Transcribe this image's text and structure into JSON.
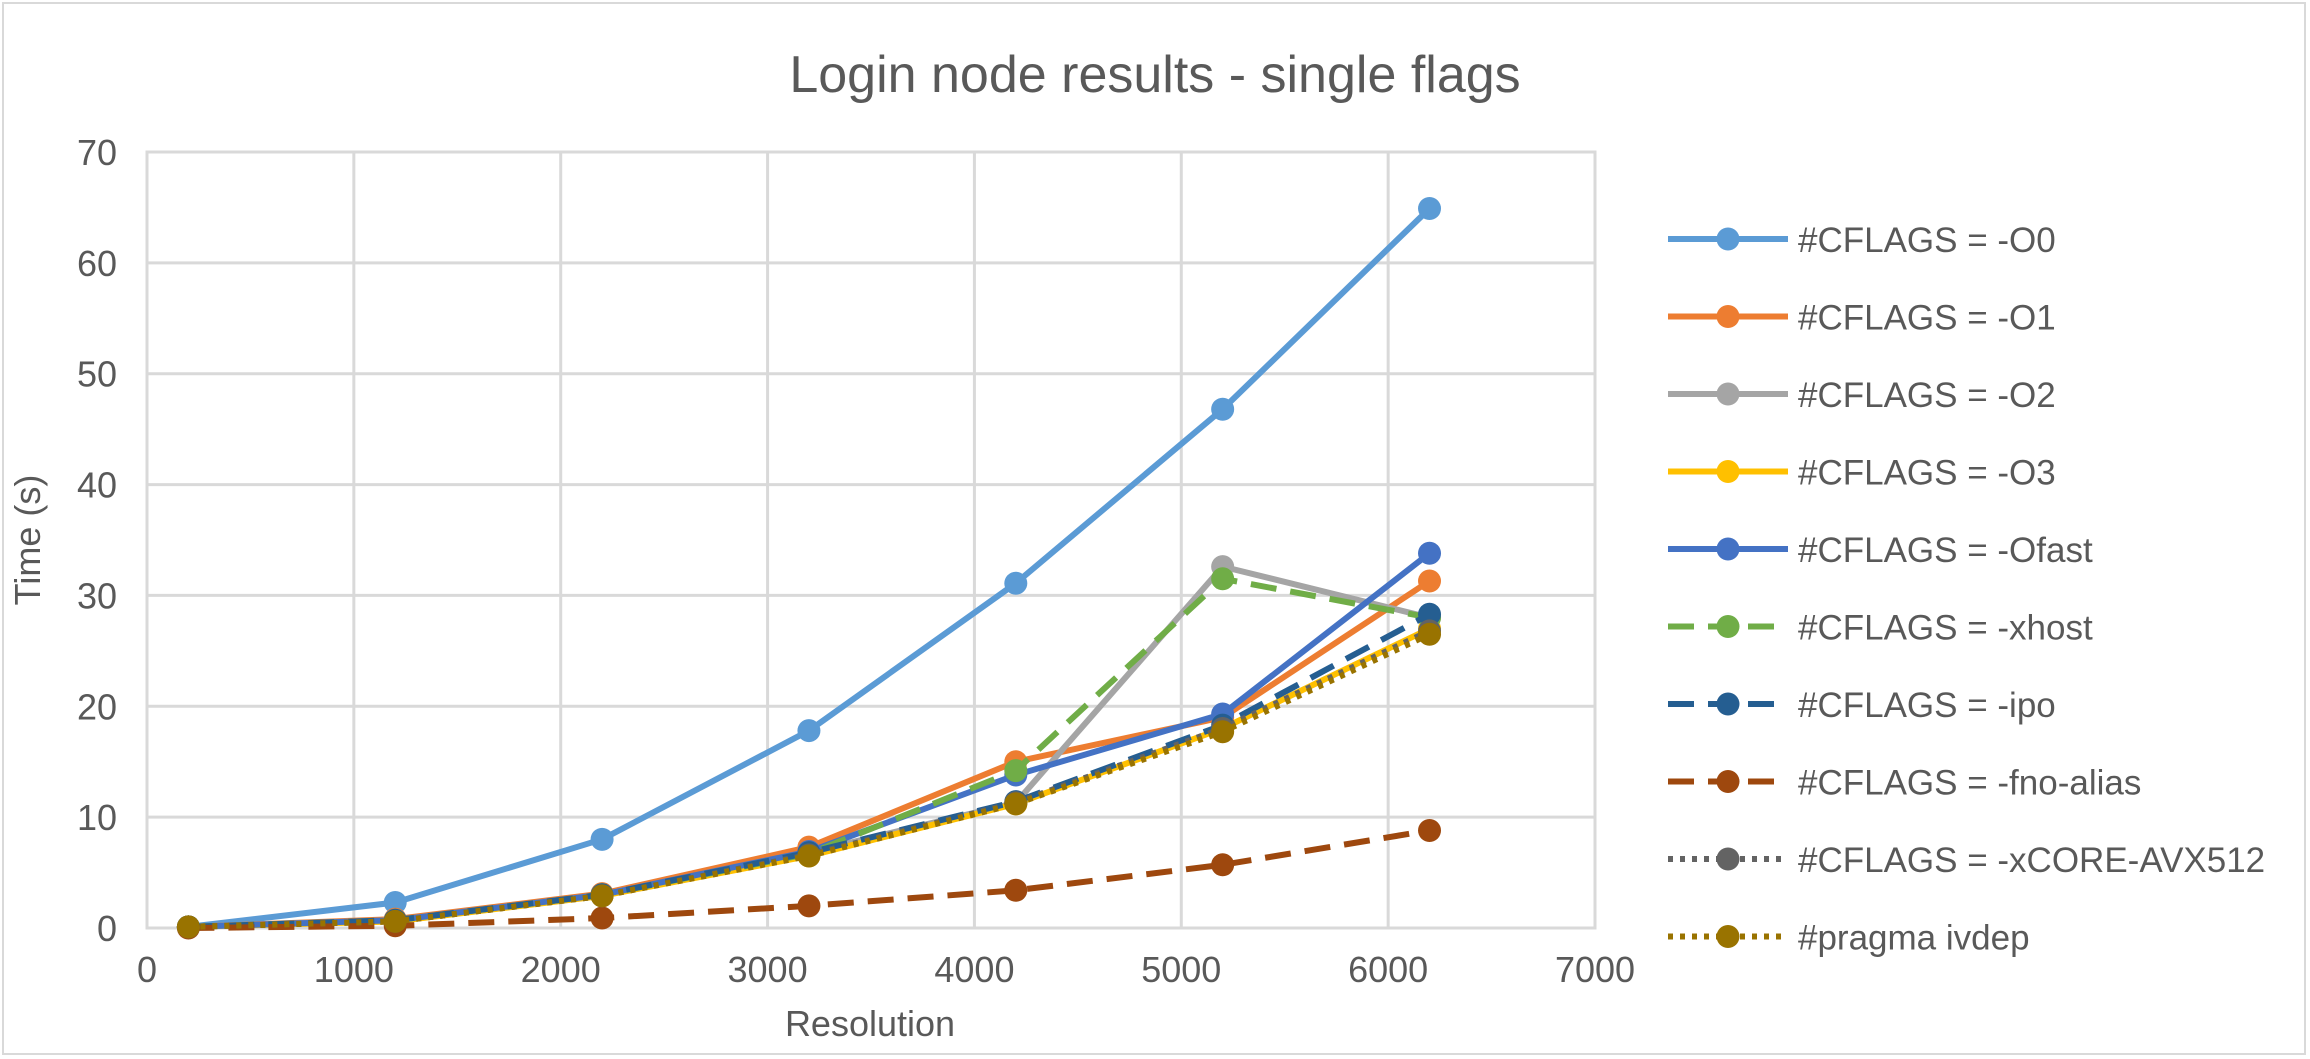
{
  "chart_data": {
    "type": "line",
    "title": "Login node results - single flags",
    "xlabel": "Resolution",
    "ylabel": "Time (s)",
    "xlim": [
      0,
      7000
    ],
    "ylim": [
      0,
      70
    ],
    "xticks": [
      0,
      1000,
      2000,
      3000,
      4000,
      5000,
      6000,
      7000
    ],
    "yticks": [
      0,
      10,
      20,
      30,
      40,
      50,
      60,
      70
    ],
    "xtick_labels": [
      "0",
      "1000",
      "2000",
      "3000",
      "4000",
      "5000",
      "6000",
      "7000"
    ],
    "ytick_labels": [
      "0",
      "10",
      "20",
      "30",
      "40",
      "50",
      "60",
      "70"
    ],
    "grid": true,
    "legend_position": "right",
    "x": [
      200,
      1200,
      2200,
      3200,
      4200,
      5200,
      6200
    ],
    "series": [
      {
        "name": "#CFLAGS = -O0",
        "color": "#5b9bd5",
        "dash": "solid",
        "marker": "circle",
        "values": [
          0.1,
          2.3,
          8.0,
          17.8,
          31.1,
          46.8,
          64.9
        ]
      },
      {
        "name": "#CFLAGS = -O1",
        "color": "#ed7d31",
        "dash": "solid",
        "marker": "circle",
        "values": [
          0.1,
          0.8,
          3.1,
          7.3,
          15.0,
          19.0,
          31.3
        ]
      },
      {
        "name": "#CFLAGS = -O2",
        "color": "#a5a5a5",
        "dash": "solid",
        "marker": "circle",
        "values": [
          0.1,
          0.7,
          3.0,
          6.8,
          11.3,
          32.6,
          28.0
        ]
      },
      {
        "name": "#CFLAGS = -O3",
        "color": "#ffc000",
        "dash": "solid",
        "marker": "circle",
        "values": [
          0.1,
          0.6,
          2.9,
          6.5,
          11.2,
          18.0,
          27.0
        ]
      },
      {
        "name": "#CFLAGS = -Ofast",
        "color": "#4472c4",
        "dash": "solid",
        "marker": "circle",
        "values": [
          0.1,
          0.7,
          3.0,
          6.9,
          13.8,
          19.3,
          33.8
        ]
      },
      {
        "name": "#CFLAGS = -xhost",
        "color": "#70ad47",
        "dash": "dash",
        "marker": "circle",
        "values": [
          0.1,
          0.7,
          3.0,
          6.7,
          14.2,
          31.5,
          28.0
        ]
      },
      {
        "name": "#CFLAGS = -ipo",
        "color": "#255e91",
        "dash": "dash",
        "marker": "circle",
        "values": [
          0.1,
          0.7,
          3.0,
          6.8,
          11.4,
          18.3,
          28.3
        ]
      },
      {
        "name": "#CFLAGS = -fno-alias",
        "color": "#9e480e",
        "dash": "dash",
        "marker": "circle",
        "values": [
          0.0,
          0.2,
          0.9,
          2.0,
          3.4,
          5.7,
          8.8
        ]
      },
      {
        "name": "#CFLAGS = -xCORE-AVX512",
        "color": "#636363",
        "dash": "dot",
        "marker": "circle",
        "values": [
          0.1,
          0.6,
          2.9,
          6.6,
          11.3,
          18.0,
          26.8
        ]
      },
      {
        "name": "#pragma ivdep",
        "color": "#997300",
        "dash": "dot",
        "marker": "circle",
        "values": [
          0.1,
          0.6,
          2.9,
          6.5,
          11.2,
          17.7,
          26.5
        ]
      }
    ]
  }
}
